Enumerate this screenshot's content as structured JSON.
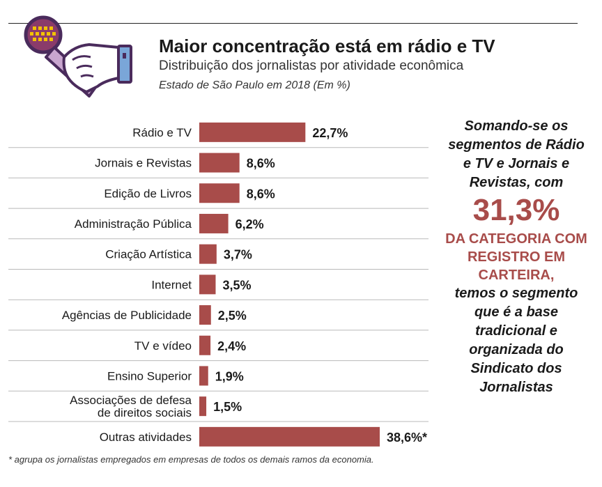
{
  "header": {
    "title": "Maior concentração está em rádio e TV",
    "subtitle": "Distribuição dos jornalistas por atividade econômica",
    "note": "Estado de São Paulo em 2018 (Em %)"
  },
  "chart_data": {
    "type": "bar",
    "orientation": "horizontal",
    "title": "Maior concentração está em rádio e TV",
    "subtitle": "Distribuição dos jornalistas por atividade econômica",
    "categories": [
      "Rádio e TV",
      "Jornais e Revistas",
      "Edição de Livros",
      "Administração Pública",
      "Criação Artística",
      "Internet",
      "Agências de Publicidade",
      "TV e vídeo",
      "Ensino Superior",
      "Associações de defesa de direitos sociais",
      "Outras atividades"
    ],
    "category_lines": [
      [
        "Rádio e TV"
      ],
      [
        "Jornais e Revistas"
      ],
      [
        "Edição de Livros"
      ],
      [
        "Administração Pública"
      ],
      [
        "Criação Artística"
      ],
      [
        "Internet"
      ],
      [
        "Agências de Publicidade"
      ],
      [
        "TV e vídeo"
      ],
      [
        "Ensino Superior"
      ],
      [
        "Associações de defesa",
        "de direitos sociais"
      ],
      [
        "Outras atividades"
      ]
    ],
    "values": [
      22.7,
      8.6,
      8.6,
      6.2,
      3.7,
      3.5,
      2.5,
      2.4,
      1.9,
      1.5,
      38.6
    ],
    "data_labels": [
      "22,7%",
      "8,6%",
      "8,6%",
      "6,2%",
      "3,7%",
      "3,5%",
      "2,5%",
      "2,4%",
      "1,9%",
      "1,5%",
      "38,6%*"
    ],
    "xlim": [
      0,
      38.6
    ],
    "bar_color": "#a84c4a",
    "grid": false,
    "legend": "none"
  },
  "side_text": {
    "intro": "Somando-se os segmentos de Rádio e TV e Jornais e Revistas, com",
    "big_value": "31,3%",
    "highlight": "DA CATEGORIA COM REGISTRO EM CARTEIRA,",
    "outro": "temos o segmento que é a base tradicional e organizada do Sindicato dos Jornalistas"
  },
  "footnote": "* agrupa os jornalistas empregados em empresas de todos os demais ramos da economia.",
  "icon": "microphone-hand-icon",
  "colors": {
    "accent": "#a84c4a",
    "icon_outline": "#4a2b5c",
    "icon_fill": "#c9a6cf",
    "mic_head": "#8a3b6a",
    "mic_dots": "#f2c200",
    "mic_body": "#7aa6d8"
  }
}
